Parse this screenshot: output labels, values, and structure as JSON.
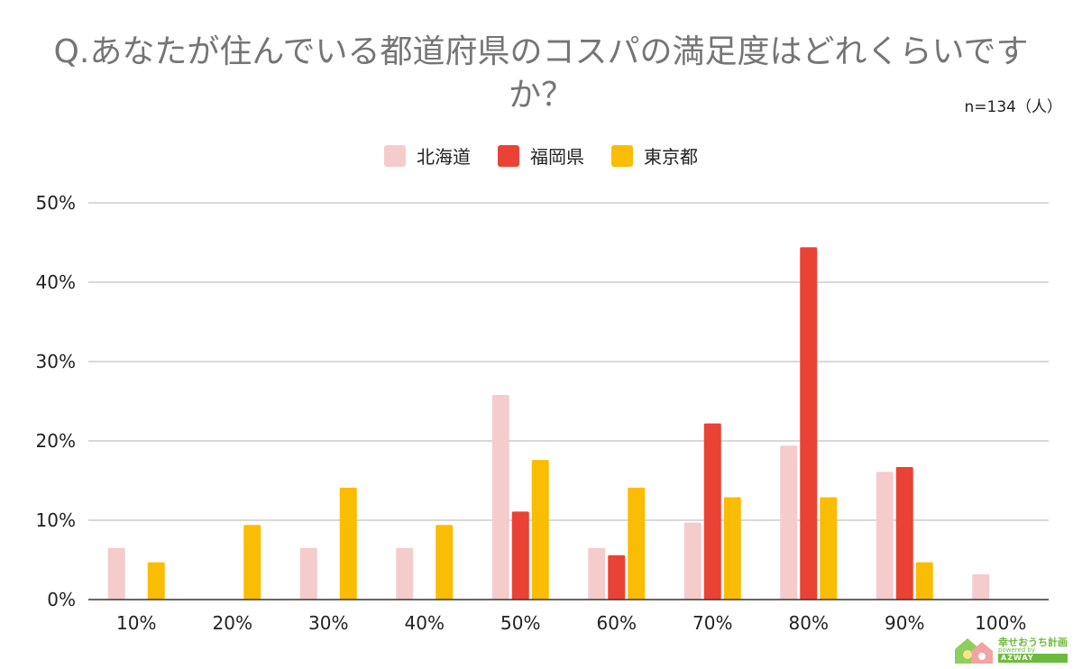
{
  "chart_data": {
    "type": "bar",
    "title": "Q.あなたが住んでいる都道府県のコスパの満足度はどれくらいですか？",
    "note": "n=134（人）",
    "categories": [
      "10%",
      "20%",
      "30%",
      "40%",
      "50%",
      "60%",
      "70%",
      "80%",
      "90%",
      "100%"
    ],
    "series": [
      {
        "name": "北海道",
        "color": "#f4cccc",
        "values": [
          6.5,
          0,
          6.5,
          6.5,
          25.8,
          6.5,
          9.7,
          19.4,
          16.1,
          3.2
        ]
      },
      {
        "name": "福岡県",
        "color": "#ea4335",
        "values": [
          0,
          0,
          0,
          0,
          11.1,
          5.6,
          22.2,
          44.4,
          16.7,
          0
        ]
      },
      {
        "name": "東京都",
        "color": "#fbbc04",
        "values": [
          4.7,
          9.4,
          14.1,
          9.4,
          17.6,
          14.1,
          12.9,
          12.9,
          4.7,
          0
        ]
      }
    ],
    "yticks": [
      "0%",
      "10%",
      "20%",
      "30%",
      "40%",
      "50%"
    ],
    "ylim": [
      0,
      50
    ],
    "legend_position": "top-center",
    "grid": true
  },
  "logo": {
    "main": "幸せおうち計画",
    "sub": "powered by",
    "brand": "AZWAY"
  }
}
